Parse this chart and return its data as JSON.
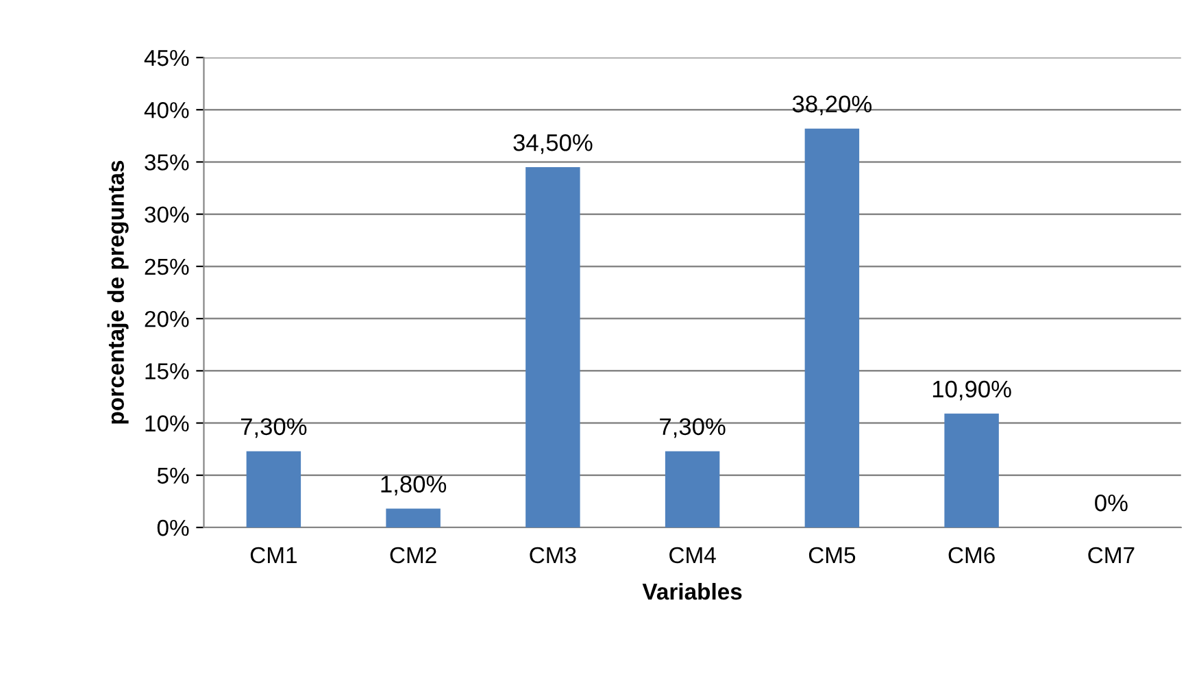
{
  "chart_data": {
    "type": "bar",
    "xlabel": "Variables",
    "ylabel": "porcentaje de preguntas",
    "categories": [
      "CM1",
      "CM2",
      "CM3",
      "CM4",
      "CM5",
      "CM6",
      "CM7"
    ],
    "values": [
      7.3,
      1.8,
      34.5,
      7.3,
      38.2,
      10.9,
      0
    ],
    "value_labels": [
      "7,30%",
      "1,80%",
      "34,50%",
      "7,30%",
      "38,20%",
      "10,90%",
      "0%"
    ],
    "color": "#4f81bd",
    "ylim": [
      0,
      45
    ],
    "yticks": [
      {
        "value": 0,
        "label": "0%"
      },
      {
        "value": 5,
        "label": "5%"
      },
      {
        "value": 10,
        "label": "10%"
      },
      {
        "value": 15,
        "label": "15%"
      },
      {
        "value": 20,
        "label": "20%"
      },
      {
        "value": 25,
        "label": "25%"
      },
      {
        "value": 30,
        "label": "30%"
      },
      {
        "value": 35,
        "label": "35%"
      },
      {
        "value": 40,
        "label": "40%"
      },
      {
        "value": 45,
        "label": "45%"
      }
    ],
    "grid": "y",
    "legend": false
  }
}
